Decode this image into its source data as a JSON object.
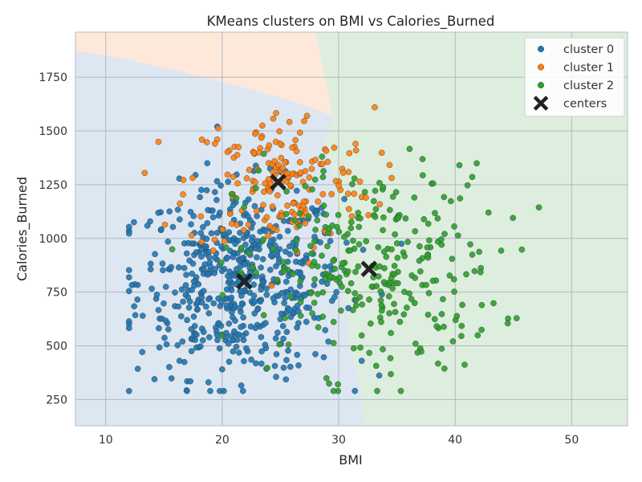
{
  "chart_data": {
    "type": "scatter",
    "title": "KMeans clusters on BMI vs Calories_Burned",
    "xlabel": "BMI",
    "ylabel": "Calories_Burned",
    "xlim": [
      7.4,
      54.8
    ],
    "ylim": [
      128,
      1960
    ],
    "xticks": [
      10,
      20,
      30,
      40,
      50
    ],
    "yticks": [
      250,
      500,
      750,
      1000,
      1250,
      1500,
      1750
    ],
    "grid": true,
    "legend_position": "top-right",
    "colors": {
      "cluster_0": "#1f77b4",
      "cluster_1": "#ff7f0e",
      "cluster_2": "#2ca02c",
      "centers": "#222222",
      "region_0": "#dde7f2",
      "region_1": "#fde8da",
      "region_2": "#deeede"
    },
    "series": [
      {
        "name": "cluster 0",
        "n_points": 560,
        "x_center": 21.5,
        "x_spread": 4.4,
        "y_center": 800,
        "y_spread": 220
      },
      {
        "name": "cluster 1",
        "n_points": 180,
        "x_center": 25.0,
        "x_spread": 4.0,
        "y_center": 1265,
        "y_spread": 170
      },
      {
        "name": "cluster 2",
        "n_points": 300,
        "x_center": 32.5,
        "x_spread": 5.6,
        "y_center": 855,
        "y_spread": 240
      }
    ],
    "centers": {
      "name": "centers",
      "points": [
        [
          21.9,
          800
        ],
        [
          24.8,
          1262
        ],
        [
          32.6,
          858
        ]
      ]
    },
    "regions": {
      "cluster_1_boundary": [
        [
          7.4,
          1875
        ],
        [
          12,
          1830
        ],
        [
          17,
          1770
        ],
        [
          22,
          1700
        ],
        [
          26,
          1640
        ],
        [
          29.5,
          1570
        ],
        [
          31,
          1600
        ],
        [
          34,
          1740
        ],
        [
          36,
          1850
        ],
        [
          37.2,
          1960
        ]
      ],
      "cluster_2_boundary": [
        [
          28,
          1960
        ],
        [
          29.5,
          1570
        ],
        [
          28.8,
          1440
        ],
        [
          29.6,
          1260
        ],
        [
          29.8,
          1100
        ],
        [
          30.2,
          900
        ],
        [
          30.6,
          700
        ],
        [
          31,
          500
        ],
        [
          31.8,
          320
        ],
        [
          32.1,
          128
        ]
      ]
    }
  }
}
